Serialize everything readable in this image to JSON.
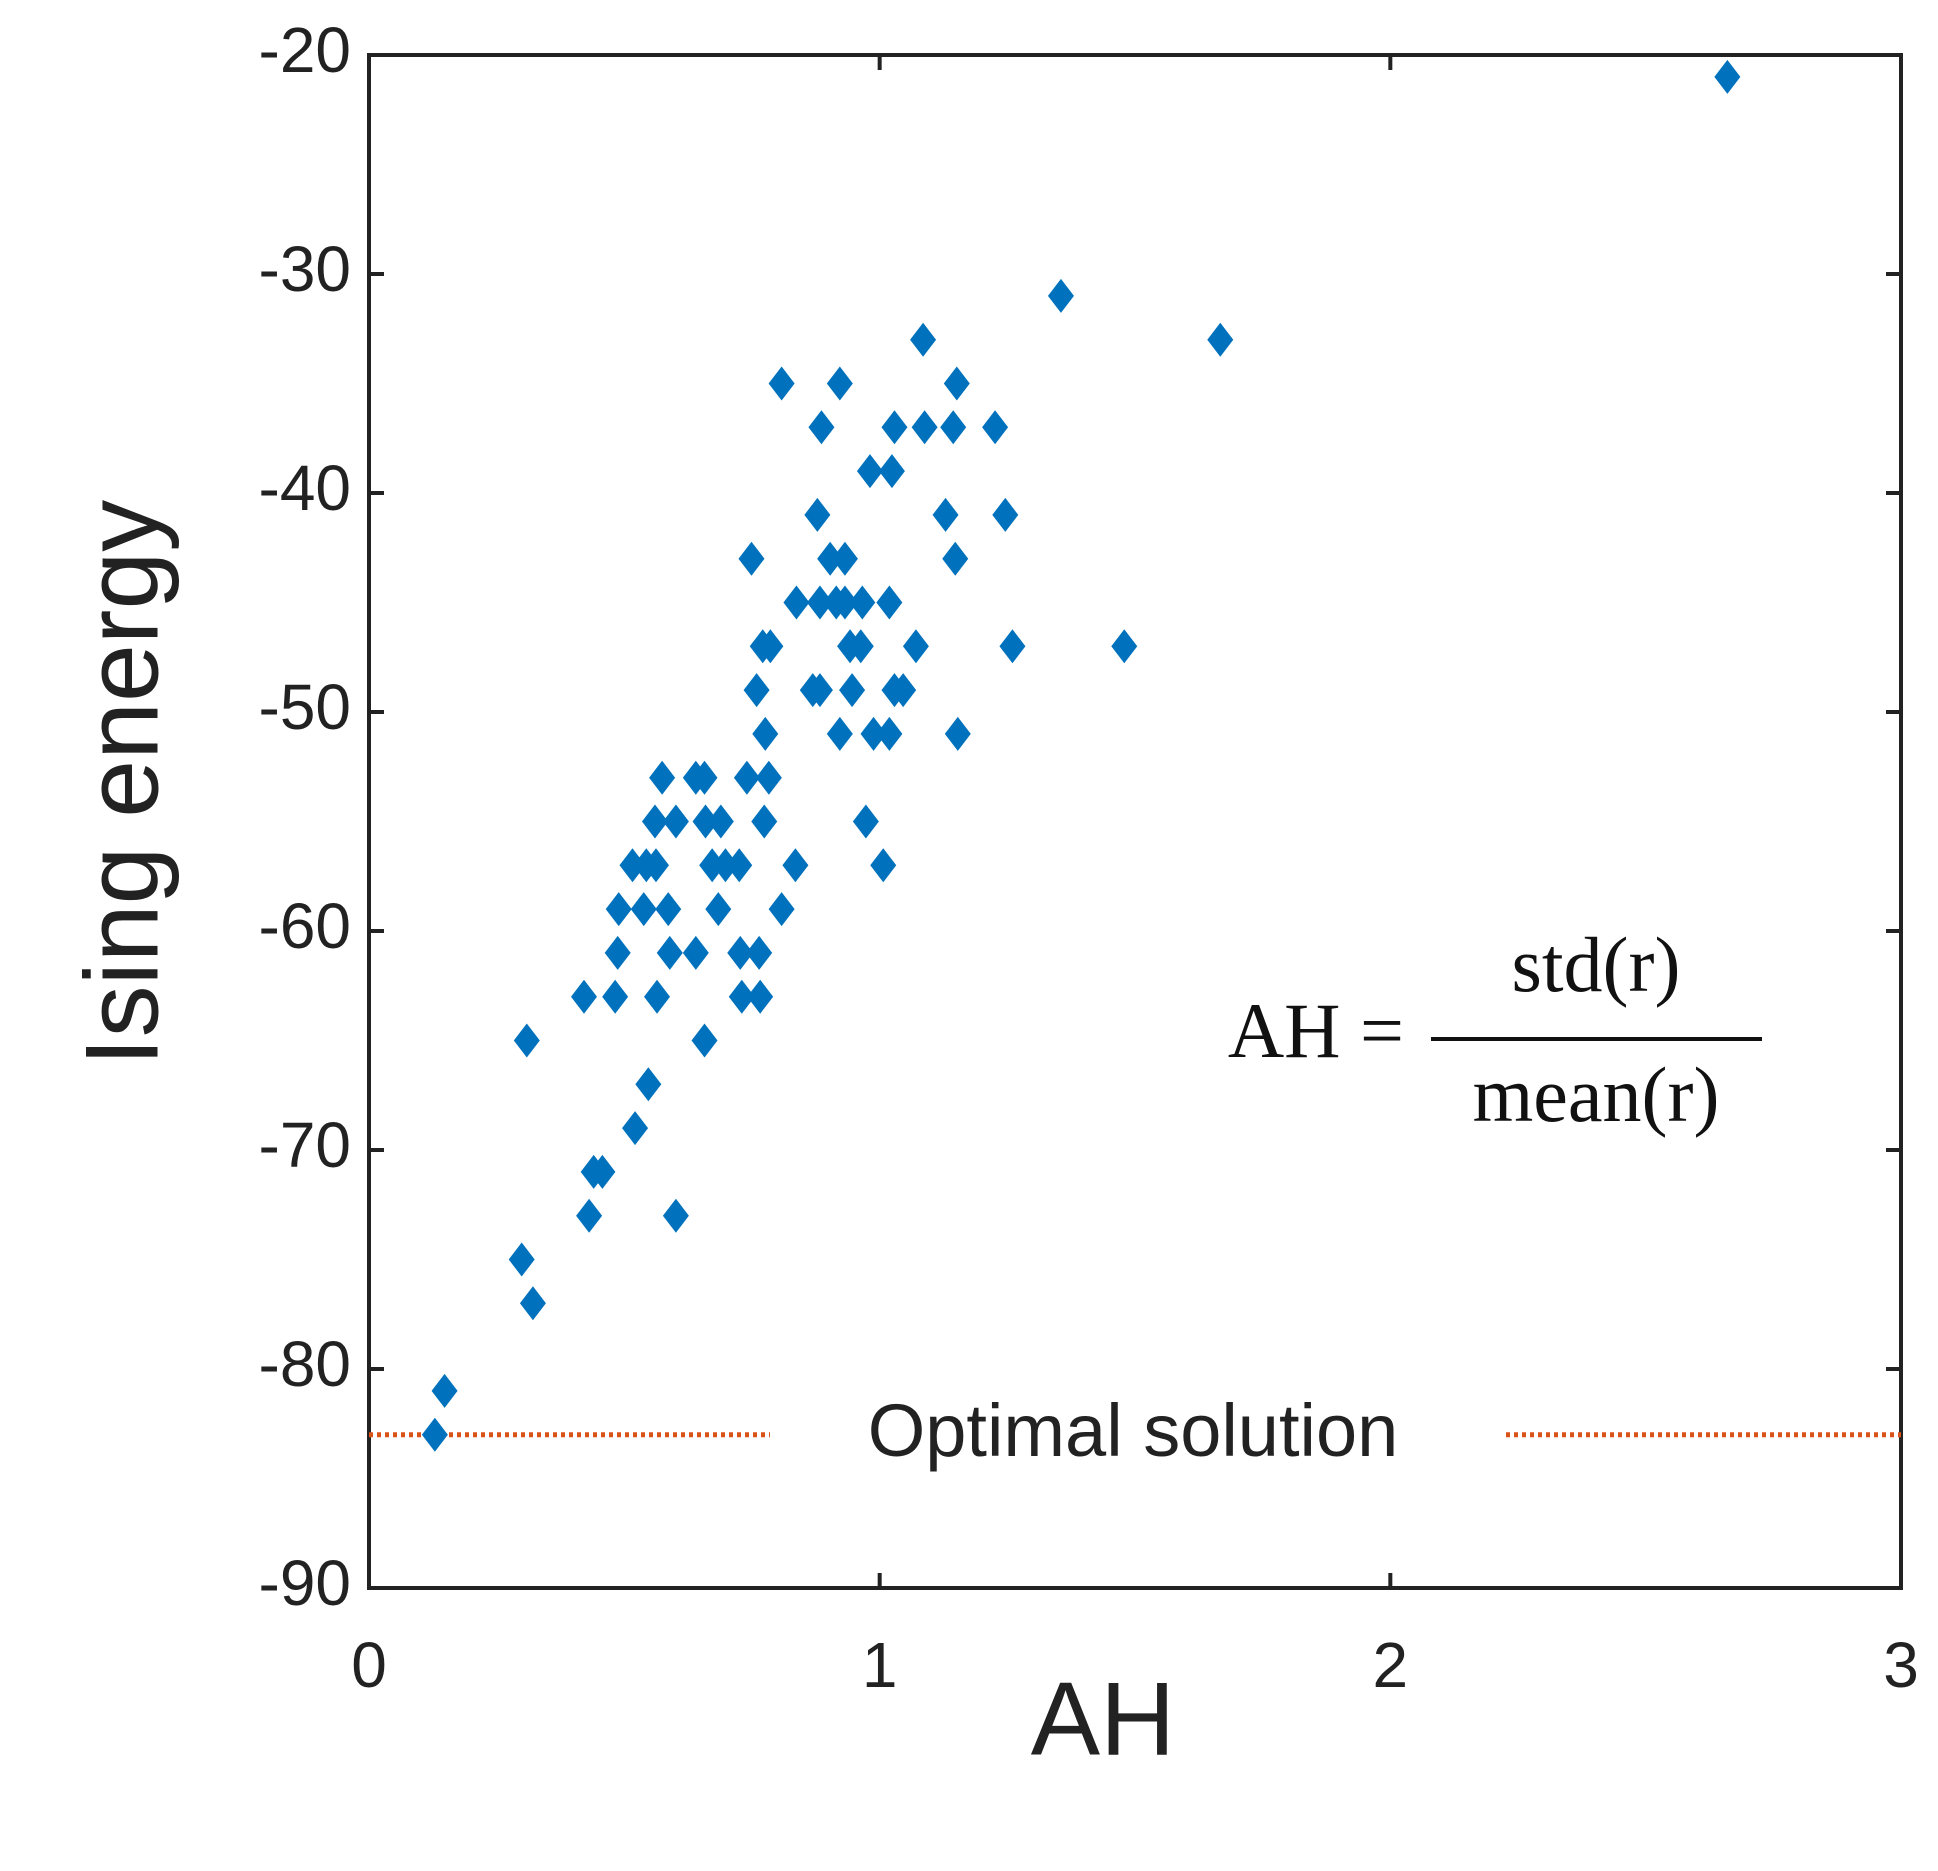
{
  "chart_data": {
    "type": "scatter",
    "xlabel": "AH",
    "ylabel": "Ising energy",
    "xlim": [
      0,
      3
    ],
    "ylim": [
      -90,
      -20
    ],
    "xticks": [
      0,
      1,
      2,
      3
    ],
    "yticks": [
      -90,
      -80,
      -70,
      -60,
      -50,
      -40,
      -30,
      -20
    ],
    "series": [
      {
        "color": "#0072bd",
        "x": [
          2.66,
          1.355,
          1.667,
          1.085,
          0.808,
          0.922,
          1.151,
          0.886,
          1.029,
          1.088,
          1.144,
          1.226,
          0.981,
          1.024,
          0.878,
          1.129,
          1.246,
          0.749,
          0.903,
          0.932,
          1.148,
          0.837,
          0.883,
          0.915,
          0.932,
          0.966,
          1.019,
          0.771,
          0.786,
          0.942,
          0.963,
          1.071,
          1.26,
          1.479,
          0.759,
          0.869,
          0.883,
          0.946,
          1.029,
          1.046,
          0.776,
          0.922,
          0.988,
          1.019,
          1.153,
          0.574,
          0.64,
          0.657,
          0.74,
          0.783,
          0.56,
          0.601,
          0.659,
          0.689,
          0.774,
          0.973,
          0.516,
          0.543,
          0.562,
          0.672,
          0.698,
          0.725,
          0.835,
          1.007,
          0.489,
          0.538,
          0.586,
          0.684,
          0.808,
          0.487,
          0.589,
          0.64,
          0.727,
          0.764,
          0.421,
          0.482,
          0.564,
          0.73,
          0.766,
          0.309,
          0.657,
          0.547,
          0.521,
          0.44,
          0.457,
          0.431,
          0.601,
          0.299,
          0.321,
          0.148,
          0.129
        ],
        "values": [
          -21,
          -31,
          -33,
          -33,
          -35,
          -35,
          -35,
          -37,
          -37,
          -37,
          -37,
          -37,
          -39,
          -39,
          -41,
          -41,
          -41,
          -43,
          -43,
          -43,
          -43,
          -45,
          -45,
          -45,
          -45,
          -45,
          -45,
          -47,
          -47,
          -47,
          -47,
          -47,
          -47,
          -47,
          -49,
          -49,
          -49,
          -49,
          -49,
          -49,
          -51,
          -51,
          -51,
          -51,
          -51,
          -53,
          -53,
          -53,
          -53,
          -53,
          -55,
          -55,
          -55,
          -55,
          -55,
          -55,
          -57,
          -57,
          -57,
          -57,
          -57,
          -57,
          -57,
          -57,
          -59,
          -59,
          -59,
          -59,
          -59,
          -61,
          -61,
          -61,
          -61,
          -61,
          -63,
          -63,
          -63,
          -63,
          -63,
          -65,
          -65,
          -67,
          -69,
          -71,
          -71,
          -73,
          -73,
          -75,
          -77,
          -81,
          -83
        ]
      }
    ],
    "hline": {
      "value": -83,
      "label": "Optimal solution",
      "color": "#d95319"
    },
    "formula": {
      "lhs": "AH =",
      "numerator": "std(r)",
      "denominator": "mean(r)"
    }
  }
}
